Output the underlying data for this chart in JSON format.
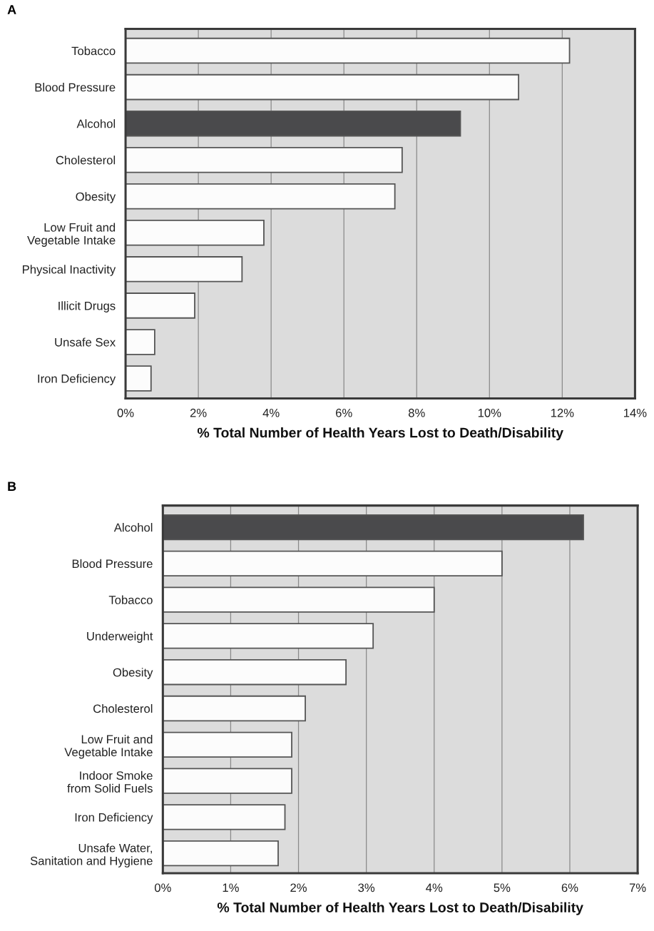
{
  "chart_data": [
    {
      "type": "bar",
      "title": "A",
      "orientation": "horizontal",
      "xlabel": "% Total Number of Health Years Lost to Death/Disability",
      "categories": [
        "Tobacco",
        "Blood Pressure",
        "Alcohol",
        "Cholesterol",
        "Obesity",
        "Low Fruit and\nVegetable Intake",
        "Physical Inactivity",
        "Illicit Drugs",
        "Unsafe Sex",
        "Iron Deficiency"
      ],
      "values": [
        12.2,
        10.8,
        9.2,
        7.6,
        7.4,
        3.8,
        3.2,
        1.9,
        0.8,
        0.7
      ],
      "colors": [
        "#fcfcfc",
        "#fcfcfc",
        "#4a4a4c",
        "#fcfcfc",
        "#fcfcfc",
        "#fcfcfc",
        "#fcfcfc",
        "#fcfcfc",
        "#fcfcfc",
        "#fcfcfc"
      ],
      "xlim": [
        0,
        14
      ],
      "xticks": [
        {
          "value": 0,
          "label": "0%"
        },
        {
          "value": 2,
          "label": "2%"
        },
        {
          "value": 4,
          "label": "4%"
        },
        {
          "value": 6,
          "label": "6%"
        },
        {
          "value": 8,
          "label": "8%"
        },
        {
          "value": 10,
          "label": "10%"
        },
        {
          "value": 12,
          "label": "12%"
        },
        {
          "value": 14,
          "label": "14%"
        }
      ],
      "grid": "x",
      "legend": false
    },
    {
      "type": "bar",
      "title": "B",
      "orientation": "horizontal",
      "xlabel": "% Total Number of Health Years Lost to Death/Disability",
      "categories": [
        "Alcohol",
        "Blood Pressure",
        "Tobacco",
        "Underweight",
        "Obesity",
        "Cholesterol",
        "Low Fruit and\nVegetable Intake",
        "Indoor Smoke\nfrom Solid Fuels",
        "Iron Deficiency",
        "Unsafe Water,\nSanitation and Hygiene"
      ],
      "values": [
        6.2,
        5.0,
        4.0,
        3.1,
        2.7,
        2.1,
        1.9,
        1.9,
        1.8,
        1.7
      ],
      "colors": [
        "#4a4a4c",
        "#fcfcfc",
        "#fcfcfc",
        "#fcfcfc",
        "#fcfcfc",
        "#fcfcfc",
        "#fcfcfc",
        "#fcfcfc",
        "#fcfcfc",
        "#fcfcfc"
      ],
      "xlim": [
        0,
        7
      ],
      "xticks": [
        {
          "value": 0,
          "label": "0%"
        },
        {
          "value": 1,
          "label": "1%"
        },
        {
          "value": 2,
          "label": "2%"
        },
        {
          "value": 3,
          "label": "3%"
        },
        {
          "value": 4,
          "label": "4%"
        },
        {
          "value": 5,
          "label": "5%"
        },
        {
          "value": 6,
          "label": "6%"
        },
        {
          "value": 7,
          "label": "7%"
        }
      ],
      "grid": "x",
      "legend": false
    }
  ]
}
